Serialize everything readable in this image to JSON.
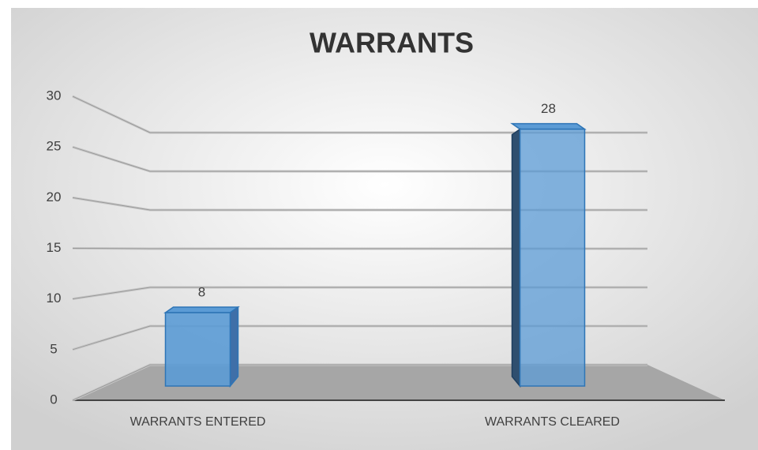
{
  "chart_data": {
    "type": "bar3d",
    "title": "WARRANTS",
    "categories": [
      "WARRANTS ENTERED",
      "WARRANTS CLEARED"
    ],
    "values": [
      8,
      28
    ],
    "color": "#5b9bd5",
    "ylim": [
      0,
      30
    ],
    "yticks": [
      0,
      5,
      10,
      15,
      20,
      25,
      30
    ],
    "grid": true
  }
}
